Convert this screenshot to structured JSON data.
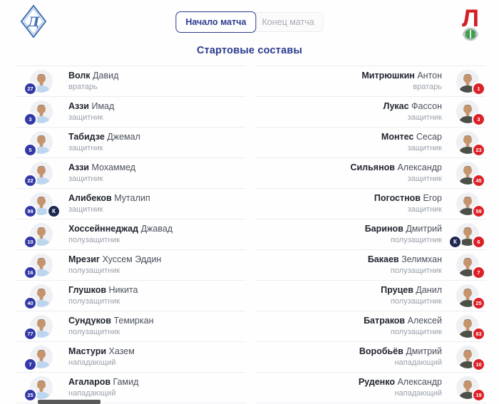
{
  "header": {
    "tabs": [
      {
        "label": "Начало матча",
        "active": true
      },
      {
        "label": "Конец матча",
        "active": false
      }
    ],
    "title": "Стартовые составы",
    "home_logo": {
      "icon": "dynamo-diamond-logo",
      "letter": "Д"
    },
    "away_logo": {
      "icon": "lokomotiv-brand-logo",
      "letter": "Л"
    }
  },
  "captain_letter": "К",
  "teams": {
    "home": {
      "players": [
        {
          "last": "Волк",
          "first": "Давид",
          "position": "вратарь",
          "number": "27",
          "captain": false
        },
        {
          "last": "Аззи",
          "first": "Имад",
          "position": "защитник",
          "number": "3",
          "captain": false
        },
        {
          "last": "Табидзе",
          "first": "Джемал",
          "position": "защитник",
          "number": "5",
          "captain": false
        },
        {
          "last": "Аззи",
          "first": "Мохаммед",
          "position": "защитник",
          "number": "22",
          "captain": false
        },
        {
          "last": "Алибеков",
          "first": "Муталип",
          "position": "защитник",
          "number": "99",
          "captain": true
        },
        {
          "last": "Хоссейннеджад",
          "first": "Джавад",
          "position": "полузащитник",
          "number": "10",
          "captain": false
        },
        {
          "last": "Мрезиг",
          "first": "Хуссем Эддин",
          "position": "полузащитник",
          "number": "16",
          "captain": false
        },
        {
          "last": "Глушков",
          "first": "Никита",
          "position": "полузащитник",
          "number": "40",
          "captain": false
        },
        {
          "last": "Сундуков",
          "first": "Темиркан",
          "position": "полузащитник",
          "number": "77",
          "captain": false
        },
        {
          "last": "Мастури",
          "first": "Хазем",
          "position": "нападающий",
          "number": "7",
          "captain": false
        },
        {
          "last": "Агаларов",
          "first": "Гамид",
          "position": "нападающий",
          "number": "25",
          "captain": false
        }
      ]
    },
    "away": {
      "players": [
        {
          "last": "Митрюшкин",
          "first": "Антон",
          "position": "вратарь",
          "number": "1",
          "captain": false
        },
        {
          "last": "Лукас",
          "first": "Фассон",
          "position": "защитник",
          "number": "3",
          "captain": false
        },
        {
          "last": "Монтес",
          "first": "Сесар",
          "position": "защитник",
          "number": "23",
          "captain": false
        },
        {
          "last": "Сильянов",
          "first": "Александр",
          "position": "защитник",
          "number": "45",
          "captain": false
        },
        {
          "last": "Погостнов",
          "first": "Егор",
          "position": "защитник",
          "number": "59",
          "captain": false
        },
        {
          "last": "Баринов",
          "first": "Дмитрий",
          "position": "полузащитник",
          "number": "6",
          "captain": true
        },
        {
          "last": "Бакаев",
          "first": "Зелимхан",
          "position": "полузащитник",
          "number": "7",
          "captain": false
        },
        {
          "last": "Пруцев",
          "first": "Данил",
          "position": "полузащитник",
          "number": "25",
          "captain": false
        },
        {
          "last": "Батраков",
          "first": "Алексей",
          "position": "полузащитник",
          "number": "83",
          "captain": false
        },
        {
          "last": "Воробьёв",
          "first": "Дмитрий",
          "position": "нападающий",
          "number": "10",
          "captain": false
        },
        {
          "last": "Руденко",
          "first": "Александр",
          "position": "нападающий",
          "number": "19",
          "captain": false
        }
      ]
    }
  },
  "colors": {
    "accent_navy": "#2b3a8f",
    "home_badge_blue": "#3239a7",
    "away_badge_red": "#dd2028",
    "captain_badge_navy": "#1c2750",
    "home_shirt": "#bdd6ef",
    "away_shirt": "#4b5046",
    "dynamo_blue": "#3f6fb4",
    "loko_red": "#d21f26",
    "loko_green": "#3f9e4d",
    "divider": "#ededf1",
    "position_text": "#9aa1ab"
  }
}
